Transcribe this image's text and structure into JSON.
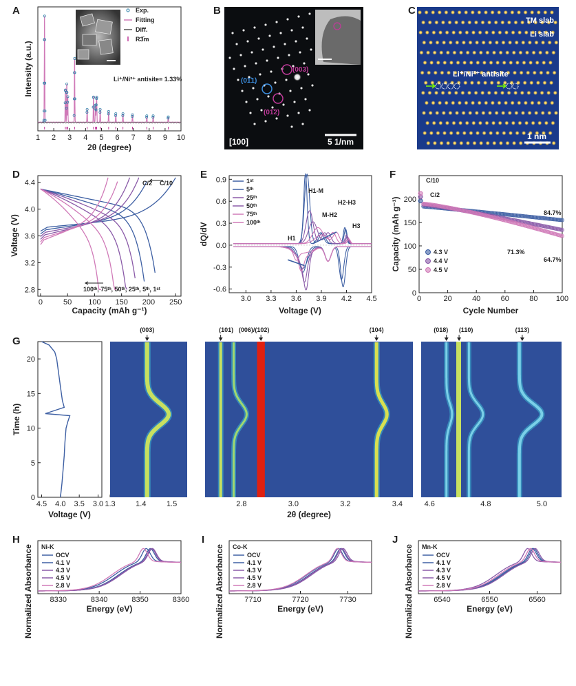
{
  "colors": {
    "blue": "#3d5fa3",
    "purple": "#8a5aa8",
    "pink": "#d07ab8",
    "magenta": "#c03a9a",
    "grey": "#555555",
    "dark_bg": "#0b0d10",
    "lattice_bg": "#1a3a8a",
    "heat_bg": "#2f4f9a"
  },
  "panels": {
    "A": {
      "letter": "A",
      "ylabel": "Intensity (a.u.)",
      "xlabel": "2θ (degree)",
      "xticks": [
        "1",
        "2",
        "3",
        "4",
        "5",
        "6",
        "7",
        "8",
        "9",
        "10"
      ],
      "legend": [
        "Exp.",
        "Fitting",
        "Diff.",
        "R3̄m"
      ],
      "annotation": "Li⁺/Ni²⁺ antisite= 1.33%"
    },
    "B": {
      "letter": "B",
      "labels": [
        "(01̄1)",
        "(003)",
        "(01̄2)"
      ],
      "zone": "[100]",
      "scale": "5 1/nm"
    },
    "C": {
      "letter": "C",
      "labels": [
        "TM slab",
        "Li slab",
        "Li⁺/Ni²⁺ antisite"
      ],
      "scale": "1 nm"
    },
    "D": {
      "letter": "D",
      "ylabel": "Voltage (V)",
      "xlabel": "Capacity (mAh g⁻¹)",
      "xticks": [
        "0",
        "50",
        "100",
        "150",
        "200",
        "250"
      ],
      "yticks": [
        "2.8",
        "3.2",
        "3.6",
        "4.0",
        "4.4"
      ],
      "rate_c2": "C/2",
      "rate_c10": "C/10",
      "cycles": "100ᵗʰ, 75ᵗʰ, 50ᵗʰ, 25ᵗʰ, 5ᵗʰ, 1ˢᵗ"
    },
    "E": {
      "letter": "E",
      "ylabel": "dQ/dV",
      "xlabel": "Voltage (V)",
      "xticks": [
        "3.0",
        "3.3",
        "3.6",
        "3.9",
        "4.2",
        "4.5"
      ],
      "yticks": [
        "-0.6",
        "-0.3",
        "0.0",
        "0.3",
        "0.6",
        "0.9"
      ],
      "legend": [
        "1ˢᵗ",
        "5ᵗʰ",
        "25ᵗʰ",
        "50ᵗʰ",
        "75ᵗʰ",
        "100ᵗʰ"
      ],
      "peaks": [
        "H1",
        "H1-M",
        "M-H2",
        "H2-H3",
        "H3"
      ]
    },
    "F": {
      "letter": "F",
      "ylabel": "Capacity (mAh g⁻¹)",
      "xlabel": "Cycle Number",
      "xticks": [
        "0",
        "20",
        "40",
        "60",
        "80",
        "100"
      ],
      "yticks": [
        "0",
        "50",
        "100",
        "150",
        "200"
      ],
      "legend": [
        "4.3 V",
        "4.4 V",
        "4.5 V"
      ],
      "rates": [
        "C/10",
        "C/2"
      ],
      "retention": [
        "84.7%",
        "71.3%",
        "64.7%"
      ]
    },
    "G": {
      "letter": "G",
      "ylabel": "Time (h)",
      "volt_xlabel": "Voltage (V)",
      "volt_xticks": [
        "4.5",
        "4.0",
        "3.5",
        "3.0"
      ],
      "yticks": [
        "0",
        "5",
        "10",
        "15",
        "20"
      ],
      "xlabel": "2θ (degree)",
      "m1_xticks": [
        "1.3",
        "1.4",
        "1.5"
      ],
      "m2_xticks": [
        "2.8",
        "3.0",
        "3.2",
        "3.4"
      ],
      "m3_xticks": [
        "4.6",
        "4.8",
        "5.0"
      ],
      "reflections": [
        "(003)",
        "(101)",
        "(006)/(102)",
        "(104)",
        "(018)",
        "(110)",
        "(113)"
      ]
    },
    "H": {
      "letter": "H",
      "edge": "Ni-K",
      "ylabel": "Normalized Absorbance",
      "xlabel": "Energy (eV)",
      "xticks": [
        "8330",
        "8340",
        "8350",
        "8360"
      ],
      "legend": [
        "OCV",
        "4.1 V",
        "4.3 V",
        "4.5 V",
        "2.8 V"
      ]
    },
    "I": {
      "letter": "I",
      "edge": "Co-K",
      "ylabel": "Normalized Absorbance",
      "xlabel": "Energy (eV)",
      "xticks": [
        "7710",
        "7720",
        "7730"
      ],
      "legend": [
        "OCV",
        "4.1 V",
        "4.3 V",
        "4.5 V",
        "2.8 V"
      ]
    },
    "J": {
      "letter": "J",
      "edge": "Mn-K",
      "ylabel": "Normalized Absorbance",
      "xlabel": "Energy (eV)",
      "xticks": [
        "6540",
        "6550",
        "6560"
      ],
      "legend": [
        "OCV",
        "4.1 V",
        "4.3 V",
        "4.5 V",
        "2.8 V"
      ]
    }
  },
  "chart_data": [
    {
      "panel": "A",
      "type": "line",
      "xlabel": "2θ (degree)",
      "ylabel": "Intensity (a.u.)",
      "xlim": [
        1,
        10
      ],
      "peaks_2theta": [
        1.42,
        2.73,
        2.82,
        2.88,
        3.31,
        4.1,
        4.5,
        4.62,
        4.67,
        4.7,
        4.92,
        5.45,
        5.9,
        6.35,
        6.95,
        7.85,
        8.25,
        9.2
      ],
      "peaks_relheight": [
        1.0,
        0.32,
        0.36,
        0.24,
        0.6,
        0.12,
        0.25,
        0.16,
        0.14,
        0.22,
        0.12,
        0.1,
        0.08,
        0.08,
        0.07,
        0.06,
        0.06,
        0.05
      ]
    },
    {
      "panel": "D",
      "type": "line",
      "xlabel": "Capacity (mAh g⁻¹)",
      "ylabel": "Voltage (V)",
      "xlim": [
        -5,
        260
      ],
      "ylim": [
        2.7,
        4.5
      ],
      "series": [
        {
          "name": "1ˢᵗ",
          "charge_cap": 250,
          "discharge_cap": 212
        },
        {
          "name": "5ᵗʰ",
          "charge_cap": 200,
          "discharge_cap": 192
        },
        {
          "name": "25ᵗʰ",
          "charge_cap": 182,
          "discharge_cap": 178
        },
        {
          "name": "50ᵗʰ",
          "charge_cap": 165,
          "discharge_cap": 160
        },
        {
          "name": "75ᵗʰ",
          "charge_cap": 145,
          "discharge_cap": 140
        },
        {
          "name": "100ᵗʰ",
          "charge_cap": 125,
          "discharge_cap": 112
        }
      ]
    },
    {
      "panel": "E",
      "type": "line",
      "xlabel": "Voltage (V)",
      "ylabel": "dQ/dV",
      "xlim": [
        2.8,
        4.5
      ],
      "ylim": [
        -0.65,
        0.95
      ],
      "series": [
        {
          "name": "1ˢᵗ",
          "h1m_peak": [
            3.71,
            0.95
          ],
          "h2h3_peak": [
            4.18,
            0.22
          ],
          "red_peak": [
            4.16,
            -0.55
          ]
        },
        {
          "name": "5ᵗʰ",
          "h1m_peak": [
            3.73,
            0.95
          ],
          "h2h3_peak": [
            4.19,
            0.2
          ],
          "red_peak": [
            4.14,
            -0.45
          ]
        },
        {
          "name": "25ᵗʰ",
          "h1m_peak": [
            3.76,
            0.45
          ],
          "h2h3_peak": [
            4.2,
            0.12
          ],
          "red_peak": [
            3.72,
            -0.38
          ]
        },
        {
          "name": "50ᵗʰ",
          "h1m_peak": [
            3.8,
            0.3
          ],
          "h2h3_peak": [
            4.21,
            0.1
          ],
          "red_peak": [
            3.7,
            -0.3
          ]
        },
        {
          "name": "75ᵗʰ",
          "h1m_peak": [
            3.86,
            0.22
          ],
          "h2h3_peak": [
            4.22,
            0.08
          ],
          "red_peak": [
            3.66,
            -0.2
          ]
        },
        {
          "name": "100ᵗʰ",
          "h1m_peak": [
            3.9,
            0.12
          ],
          "h2h3_peak": [
            4.23,
            0.06
          ],
          "red_peak": [
            3.6,
            -0.12
          ]
        }
      ]
    },
    {
      "panel": "F",
      "type": "scatter",
      "xlabel": "Cycle Number",
      "ylabel": "Capacity (mAh g⁻¹)",
      "xlim": [
        0,
        100
      ],
      "ylim": [
        0,
        250
      ],
      "series": [
        {
          "name": "4.3 V",
          "first_c10": 196,
          "start_c2": 184,
          "end_value": 155,
          "retention": "84.7%"
        },
        {
          "name": "4.4 V",
          "first_c10": 205,
          "start_c2": 188,
          "end_value": 134,
          "retention": "71.3%"
        },
        {
          "name": "4.5 V",
          "first_c10": 212,
          "start_c2": 190,
          "end_value": 121,
          "retention": "64.7%"
        }
      ]
    },
    {
      "panel": "G",
      "type": "heatmap",
      "xlabel": "2θ (degree)",
      "ylabel": "Time (h)",
      "ylim": [
        0,
        22.5
      ],
      "voltage_profile": {
        "t": [
          0,
          2,
          4,
          6,
          8,
          10,
          11,
          11.8,
          12.1,
          13,
          14,
          16,
          18,
          20,
          21,
          22,
          22.5
        ],
        "v": [
          4.0,
          3.96,
          3.93,
          3.9,
          3.88,
          3.85,
          3.8,
          3.75,
          4.4,
          3.9,
          3.95,
          4.0,
          4.05,
          4.1,
          4.15,
          4.3,
          4.5
        ]
      },
      "reflections": [
        {
          "name": "(003)",
          "two_theta_start": 1.42,
          "two_theta_min_max": 1.48
        },
        {
          "name": "(101)",
          "two_theta_start": 2.72
        },
        {
          "name": "(006)/(102)",
          "two_theta_start": 2.87
        },
        {
          "name": "(104)",
          "two_theta_start": 3.32,
          "two_theta_min_max": 3.36
        },
        {
          "name": "(018)",
          "two_theta_start": 4.66
        },
        {
          "name": "(110)",
          "two_theta_start": 4.71
        },
        {
          "name": "(113)",
          "two_theta_start": 4.92,
          "two_theta_min_max": 5.0
        }
      ]
    },
    {
      "panel": "H",
      "type": "line",
      "xlabel": "Energy (eV)",
      "ylabel": "Normalized Absorbance",
      "xlim": [
        8325,
        8360
      ],
      "series": [
        {
          "name": "OCV",
          "edge_peak": 8351.5
        },
        {
          "name": "4.1 V",
          "edge_peak": 8352.5
        },
        {
          "name": "4.3 V",
          "edge_peak": 8352.8
        },
        {
          "name": "4.5 V",
          "edge_peak": 8353
        },
        {
          "name": "2.8 V",
          "edge_peak": 8350.8
        }
      ]
    },
    {
      "panel": "I",
      "type": "line",
      "xlabel": "Energy (eV)",
      "ylabel": "Normalized Absorbance",
      "xlim": [
        7705,
        7735
      ],
      "series": [
        {
          "name": "OCV",
          "edge_peak": 7728
        },
        {
          "name": "4.1 V",
          "edge_peak": 7728.5
        },
        {
          "name": "4.3 V",
          "edge_peak": 7728.7
        },
        {
          "name": "4.5 V",
          "edge_peak": 7729
        },
        {
          "name": "2.8 V",
          "edge_peak": 7727.8
        }
      ]
    },
    {
      "panel": "J",
      "type": "line",
      "xlabel": "Energy (eV)",
      "ylabel": "Normalized Absorbance",
      "xlim": [
        6535,
        6565
      ],
      "series": [
        {
          "name": "OCV",
          "edge_peak": 6559
        },
        {
          "name": "4.1 V",
          "edge_peak": 6559.3
        },
        {
          "name": "4.3 V",
          "edge_peak": 6559.6
        },
        {
          "name": "4.5 V",
          "edge_peak": 6558
        },
        {
          "name": "2.8 V",
          "edge_peak": 6558.6
        }
      ]
    }
  ]
}
